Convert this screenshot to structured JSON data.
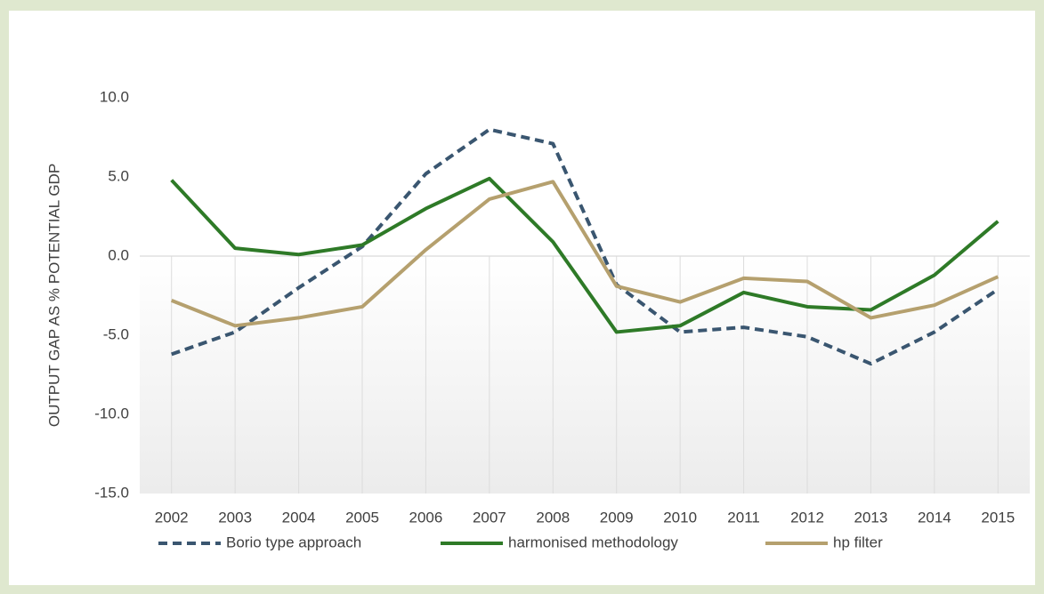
{
  "chart_data": {
    "type": "line",
    "y_label": "OUTPUT GAP AS % POTENTIAL GDP",
    "categories": [
      "2002",
      "2003",
      "2004",
      "2005",
      "2006",
      "2007",
      "2008",
      "2009",
      "2010",
      "2011",
      "2012",
      "2013",
      "2014",
      "2015"
    ],
    "series": [
      {
        "name": "Borio type approach",
        "color": "#3a5670",
        "dash": true,
        "values": [
          -6.2,
          -4.8,
          -2.0,
          0.6,
          5.2,
          8.0,
          7.1,
          -1.8,
          -4.8,
          -4.5,
          -5.1,
          -6.8,
          -4.8,
          -2.1
        ]
      },
      {
        "name": "harmonised methodology",
        "color": "#2e7a27",
        "dash": false,
        "values": [
          4.8,
          0.5,
          0.1,
          0.7,
          3.0,
          4.9,
          0.9,
          -4.8,
          -4.4,
          -2.3,
          -3.2,
          -3.4,
          -1.2,
          2.2
        ]
      },
      {
        "name": "hp filter",
        "color": "#b5a06e",
        "dash": false,
        "values": [
          -2.8,
          -4.4,
          -3.9,
          -3.2,
          0.4,
          3.6,
          4.7,
          -1.9,
          -2.9,
          -1.4,
          -1.6,
          -3.9,
          -3.1,
          -1.3
        ]
      }
    ],
    "ylim": [
      -15,
      10
    ],
    "yticks": [
      {
        "value": -15,
        "label": "-15.0"
      },
      {
        "value": -10,
        "label": "-10.0"
      },
      {
        "value": -5,
        "label": "-5.0"
      },
      {
        "value": 0,
        "label": "0.0"
      },
      {
        "value": 5,
        "label": "5.0"
      },
      {
        "value": 10,
        "label": "10.0"
      }
    ],
    "grid": true,
    "legend": "bottom"
  }
}
